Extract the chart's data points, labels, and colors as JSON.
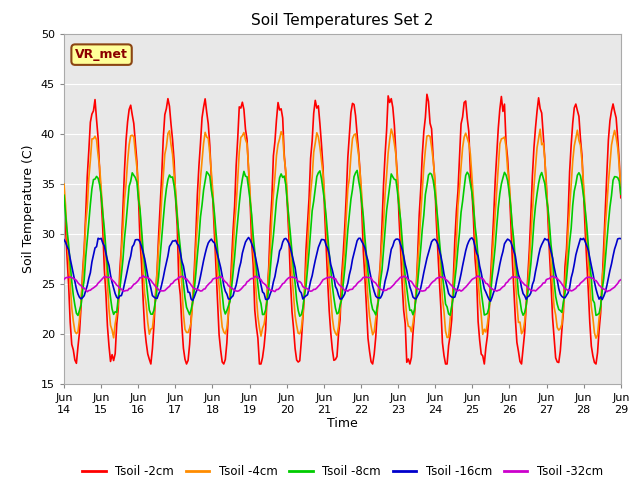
{
  "title": "Soil Temperatures Set 2",
  "xlabel": "Time",
  "ylabel": "Soil Temperature (C)",
  "ylim": [
    15,
    50
  ],
  "xlim": [
    0,
    15
  ],
  "bg_color": "#e8e8e8",
  "fig_color": "#ffffff",
  "annotation_text": "VR_met",
  "annotation_bg": "#ffff99",
  "annotation_border": "#8B4513",
  "xtick_labels": [
    "Jun\n14",
    "Jun\n15",
    "Jun\n16",
    "Jun\n17",
    "Jun\n18",
    "Jun\n19",
    "Jun\n20",
    "Jun\n21",
    "Jun\n22",
    "Jun\n23",
    "Jun\n24",
    "Jun\n25",
    "Jun\n26",
    "Jun\n27",
    "Jun\n28",
    "Jun\n29"
  ],
  "legend_labels": [
    "Tsoil -2cm",
    "Tsoil -4cm",
    "Tsoil -8cm",
    "Tsoil -16cm",
    "Tsoil -32cm"
  ],
  "line_colors": [
    "#ff0000",
    "#ff8c00",
    "#00cc00",
    "#0000cc",
    "#cc00cc"
  ],
  "line_widths": [
    1.2,
    1.2,
    1.2,
    1.2,
    1.2
  ],
  "grid_color": "#ffffff",
  "title_fontsize": 11,
  "label_fontsize": 9,
  "tick_fontsize": 8
}
